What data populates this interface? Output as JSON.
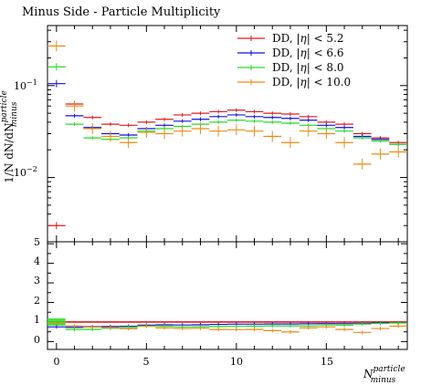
{
  "chart_data": [
    {
      "type": "scatter",
      "title": "Minus Side - Particle Multiplicity",
      "ylabel": "1/N dN/dN",
      "ylabel_sup": "particle",
      "ylabel_sub": "minus",
      "yscale": "log",
      "ylim": [
        0.002,
        0.45
      ],
      "xlim": [
        -0.5,
        19.5
      ],
      "y_tick_labels": [
        "10",
        "10"
      ],
      "y_tick_exps": [
        "−1",
        "−2"
      ],
      "legend_position": "top-right",
      "series": [
        {
          "name": "DD, |η| < 5.2",
          "legend_prefix": "DD, |",
          "legend_eta": "η",
          "legend_suffix": "| < 5.2",
          "color": "#e31a1c",
          "x": [
            0,
            1,
            2,
            3,
            4,
            5,
            6,
            7,
            8,
            9,
            10,
            11,
            12,
            13,
            14,
            15,
            16,
            17,
            18,
            19
          ],
          "y": [
            0.003,
            0.063,
            0.045,
            0.038,
            0.037,
            0.04,
            0.043,
            0.048,
            0.05,
            0.052,
            0.054,
            0.052,
            0.05,
            0.049,
            0.046,
            0.04,
            0.038,
            0.03,
            0.027,
            0.024
          ]
        },
        {
          "name": "DD, |η| < 6.6",
          "legend_prefix": "DD, |",
          "legend_eta": "η",
          "legend_suffix": "| < 6.6",
          "color": "#1010e0",
          "x": [
            0,
            1,
            2,
            3,
            4,
            5,
            6,
            7,
            8,
            9,
            10,
            11,
            12,
            13,
            14,
            15,
            16,
            17,
            18,
            19
          ],
          "y": [
            0.105,
            0.047,
            0.035,
            0.03,
            0.029,
            0.034,
            0.037,
            0.041,
            0.043,
            0.046,
            0.048,
            0.046,
            0.045,
            0.044,
            0.042,
            0.037,
            0.035,
            0.028,
            0.026,
            0.023
          ]
        },
        {
          "name": "DD, |η| < 8.0",
          "legend_prefix": "DD, |",
          "legend_eta": "η",
          "legend_suffix": "| < 8.0",
          "color": "#22dd22",
          "x": [
            0,
            1,
            2,
            3,
            4,
            5,
            6,
            7,
            8,
            9,
            10,
            11,
            12,
            13,
            14,
            15,
            16,
            17,
            18,
            19
          ],
          "y": [
            0.16,
            0.038,
            0.027,
            0.026,
            0.027,
            0.032,
            0.034,
            0.036,
            0.038,
            0.04,
            0.042,
            0.041,
            0.04,
            0.039,
            0.037,
            0.034,
            0.032,
            0.027,
            0.025,
            0.023
          ]
        },
        {
          "name": "DD, |η| < 10.0",
          "legend_prefix": "DD, |",
          "legend_eta": "η",
          "legend_suffix": "| < 10.0",
          "color": "#ee8a10",
          "x": [
            0,
            1,
            2,
            3,
            4,
            5,
            6,
            7,
            8,
            9,
            10,
            11,
            12,
            13,
            14,
            15,
            16,
            17,
            18,
            19
          ],
          "y": [
            0.27,
            0.06,
            0.034,
            0.028,
            0.024,
            0.031,
            0.03,
            0.032,
            0.034,
            0.032,
            0.033,
            0.032,
            0.028,
            0.024,
            0.032,
            0.03,
            0.024,
            0.014,
            0.018,
            0.019
          ]
        }
      ]
    },
    {
      "type": "scatter",
      "title": "",
      "ylabel": "",
      "ylim": [
        -0.4,
        5.1
      ],
      "xlim": [
        -0.5,
        19.5
      ],
      "y_ticks": [
        "0",
        "1",
        "2",
        "3",
        "4",
        "5"
      ],
      "x_ticks": [
        "0",
        "5",
        "10",
        "15"
      ],
      "xlabel": "N",
      "xlabel_sup": "particle",
      "xlabel_sub": "minus",
      "series": [
        {
          "name": "",
          "color": "#e31a1c",
          "x": [
            0,
            1,
            2,
            3,
            4,
            5,
            6,
            7,
            8,
            9,
            10,
            11,
            12,
            13,
            14,
            15,
            16,
            17,
            18,
            19
          ],
          "y": [
            1,
            1,
            1,
            1,
            1,
            1,
            1,
            1,
            1,
            1,
            1,
            1,
            1,
            1,
            1,
            1,
            1,
            1,
            1,
            1
          ]
        },
        {
          "name": "",
          "color": "#1010e0",
          "x": [
            0,
            1,
            2,
            3,
            4,
            5,
            6,
            7,
            8,
            9,
            10,
            11,
            12,
            13,
            14,
            15,
            16,
            17,
            18,
            19
          ],
          "y": [
            0.75,
            0.73,
            0.76,
            0.77,
            0.78,
            0.84,
            0.86,
            0.85,
            0.86,
            0.88,
            0.89,
            0.89,
            0.9,
            0.9,
            0.91,
            0.92,
            0.92,
            0.93,
            0.96,
            0.96
          ]
        },
        {
          "name": "",
          "color": "#22dd22",
          "x": [
            0,
            1,
            2,
            3,
            4,
            5,
            6,
            7,
            8,
            9,
            10,
            11,
            12,
            13,
            14,
            15,
            16,
            17,
            18,
            19
          ],
          "y": [
            1.0,
            0.62,
            0.62,
            0.68,
            0.73,
            0.8,
            0.79,
            0.75,
            0.76,
            0.77,
            0.78,
            0.79,
            0.8,
            0.8,
            0.8,
            0.85,
            0.84,
            0.9,
            0.93,
            0.95
          ]
        },
        {
          "name": "",
          "color": "#ee8a10",
          "x": [
            0,
            1,
            2,
            3,
            4,
            5,
            6,
            7,
            8,
            9,
            10,
            11,
            12,
            13,
            14,
            15,
            16,
            17,
            18,
            19
          ],
          "y": [
            0.96,
            0.8,
            0.74,
            0.72,
            0.66,
            0.78,
            0.7,
            0.67,
            0.68,
            0.62,
            0.61,
            0.62,
            0.56,
            0.49,
            0.7,
            0.75,
            0.62,
            0.47,
            0.67,
            0.79
          ]
        }
      ]
    }
  ]
}
